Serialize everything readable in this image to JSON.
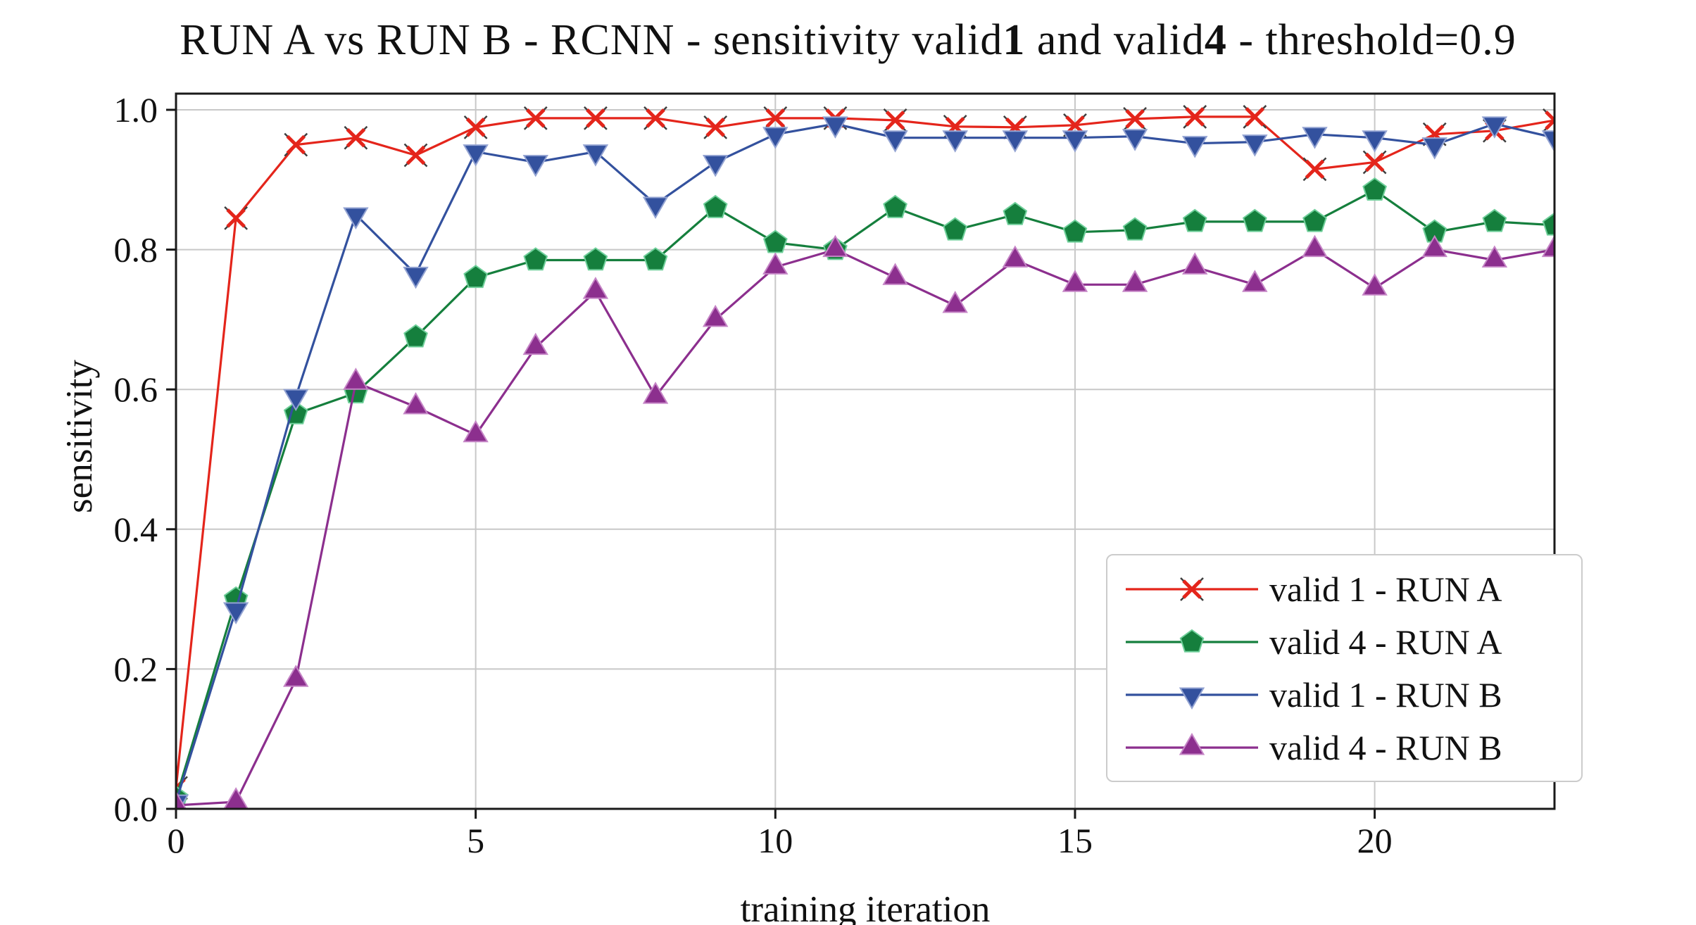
{
  "figure": {
    "background": "#ffffff",
    "grid_color": "#c8c8c8",
    "spine_color": "#1a1a1a",
    "text_color": "#111111"
  },
  "chart_data": {
    "type": "line",
    "title": "RUN A vs RUN B - RCNN - sensitivity valid1 and valid4 - threshold=0.9",
    "title_parts": [
      "RUN A vs RUN B - RCNN - sensitivity valid",
      "1",
      " and valid",
      "4",
      " - threshold=0.9"
    ],
    "xlabel": "training iteration",
    "ylabel": "sensitivity",
    "xlim": [
      0,
      23
    ],
    "ylim": [
      0.0,
      1.023
    ],
    "grid": true,
    "legend_position": "lower right",
    "xticks": [
      0,
      5,
      10,
      15,
      20
    ],
    "xtick_labels": [
      "0",
      "5",
      "10",
      "15",
      "20"
    ],
    "yticks": [
      0.0,
      0.2,
      0.4,
      0.6,
      0.8,
      1.0
    ],
    "ytick_labels": [
      "0.0",
      "0.2",
      "0.4",
      "0.6",
      "0.8",
      "1.0"
    ],
    "x": [
      0,
      1,
      2,
      3,
      4,
      5,
      6,
      7,
      8,
      9,
      10,
      11,
      12,
      13,
      14,
      15,
      16,
      17,
      18,
      19,
      20,
      21,
      22,
      23
    ],
    "series": [
      {
        "name": "valid 1 - RUN A",
        "color": "#e4251b",
        "edge": "#3f3f3f",
        "marker": "x",
        "values": [
          0.03,
          0.845,
          0.95,
          0.96,
          0.935,
          0.975,
          0.988,
          0.988,
          0.988,
          0.975,
          0.988,
          0.988,
          0.985,
          0.976,
          0.975,
          0.978,
          0.987,
          0.99,
          0.99,
          0.915,
          0.925,
          0.965,
          0.97,
          0.985
        ]
      },
      {
        "name": "valid 4 - RUN A",
        "color": "#157f3d",
        "edge": "#6fcf9a",
        "marker": "pentagon",
        "values": [
          0.015,
          0.3,
          0.565,
          0.595,
          0.675,
          0.76,
          0.785,
          0.785,
          0.785,
          0.86,
          0.81,
          0.8,
          0.86,
          0.828,
          0.85,
          0.825,
          0.828,
          0.84,
          0.84,
          0.84,
          0.885,
          0.825,
          0.84,
          0.835
        ]
      },
      {
        "name": "valid 1 - RUN B",
        "color": "#33519e",
        "edge": "#93a3d2",
        "marker": "triangle-down",
        "values": [
          0.01,
          0.285,
          0.59,
          0.85,
          0.765,
          0.94,
          0.925,
          0.94,
          0.865,
          0.925,
          0.965,
          0.98,
          0.96,
          0.96,
          0.96,
          0.96,
          0.962,
          0.952,
          0.954,
          0.965,
          0.96,
          0.95,
          0.98,
          0.96
        ]
      },
      {
        "name": "valid 4 - RUN B",
        "color": "#8c2f8e",
        "edge": "#c585c6",
        "marker": "triangle-up",
        "values": [
          0.005,
          0.01,
          0.185,
          0.61,
          0.575,
          0.535,
          0.66,
          0.74,
          0.59,
          0.7,
          0.775,
          0.8,
          0.76,
          0.72,
          0.785,
          0.75,
          0.75,
          0.775,
          0.75,
          0.8,
          0.745,
          0.8,
          0.785,
          0.8
        ]
      }
    ]
  }
}
